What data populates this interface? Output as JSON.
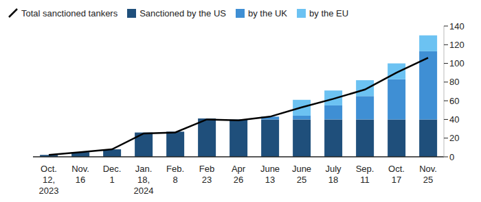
{
  "chart_data": {
    "type": "bar",
    "stacked": true,
    "grid": false,
    "legend": "top",
    "categories": [
      "Oct. 12, 2023",
      "Nov. 16",
      "Dec. 1",
      "Jan. 18, 2024",
      "Feb. 8",
      "Feb 23",
      "Apr 26",
      "June 13",
      "June 25",
      "July 18",
      "Sep. 11",
      "Oct. 17",
      "Nov. 25"
    ],
    "series": [
      {
        "name": "Total sanctioned tankers",
        "type": "line",
        "color": "#000000",
        "values": [
          2,
          5,
          8,
          25,
          26,
          40,
          39,
          43,
          53,
          62,
          72,
          90,
          106
        ]
      },
      {
        "name": "Sanctioned by the US",
        "type": "bar",
        "color": "#1f4f7b",
        "values": [
          2,
          5,
          8,
          26,
          27,
          41,
          40,
          40,
          40,
          40,
          40,
          40,
          40
        ]
      },
      {
        "name": "by the UK",
        "type": "bar",
        "color": "#3f8fd4",
        "values": [
          0,
          0,
          0,
          0,
          0,
          0,
          0,
          3,
          4,
          15,
          25,
          43,
          73
        ]
      },
      {
        "name": "by the EU",
        "type": "bar",
        "color": "#6cc2f2",
        "values": [
          0,
          0,
          0,
          0,
          0,
          0,
          0,
          0,
          17,
          16,
          17,
          17,
          17
        ]
      }
    ],
    "ylim": [
      0,
      140
    ],
    "yticks": [
      0,
      20,
      40,
      60,
      80,
      100,
      120,
      140
    ]
  }
}
